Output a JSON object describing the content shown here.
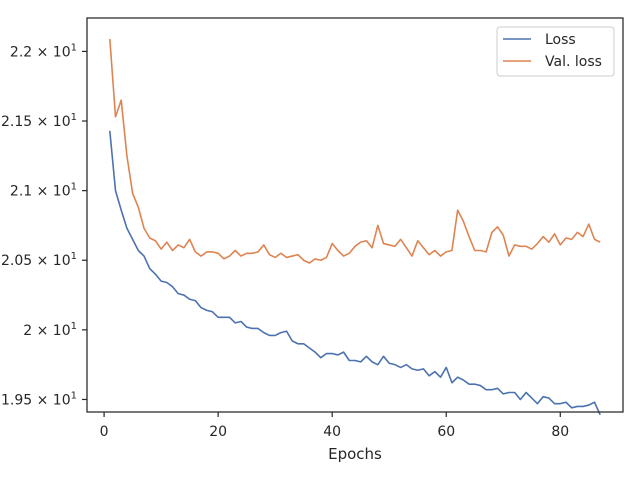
{
  "chart_data": {
    "type": "line",
    "title": "",
    "xlabel": "Epochs",
    "ylabel": "",
    "xlim": [
      -3,
      91
    ],
    "ylim": [
      19.41,
      22.24
    ],
    "grid": false,
    "legend_position": "top-right",
    "x_ticks": [
      0,
      20,
      40,
      60,
      80
    ],
    "y_ticks": [
      {
        "value": 19.5,
        "mant": "1.95",
        "exp": "1"
      },
      {
        "value": 20.0,
        "mant": "2",
        "exp": "1"
      },
      {
        "value": 20.5,
        "mant": "2.05",
        "exp": "1"
      },
      {
        "value": 21.0,
        "mant": "2.1",
        "exp": "1"
      },
      {
        "value": 21.5,
        "mant": "2.15",
        "exp": "1"
      },
      {
        "value": 22.0,
        "mant": "2.2",
        "exp": "1"
      }
    ],
    "x": [
      1,
      2,
      3,
      4,
      5,
      6,
      7,
      8,
      9,
      10,
      11,
      12,
      13,
      14,
      15,
      16,
      17,
      18,
      19,
      20,
      21,
      22,
      23,
      24,
      25,
      26,
      27,
      28,
      29,
      30,
      31,
      32,
      33,
      34,
      35,
      36,
      37,
      38,
      39,
      40,
      41,
      42,
      43,
      44,
      45,
      46,
      47,
      48,
      49,
      50,
      51,
      52,
      53,
      54,
      55,
      56,
      57,
      58,
      59,
      60,
      61,
      62,
      63,
      64,
      65,
      66,
      67,
      68,
      69,
      70,
      71,
      72,
      73,
      74,
      75,
      76,
      77,
      78,
      79,
      80,
      81,
      82,
      83,
      84,
      85,
      86,
      87
    ],
    "series": [
      {
        "name": "Loss",
        "color": "#4c72b0",
        "values": [
          21.43,
          21.0,
          20.86,
          20.73,
          20.65,
          20.57,
          20.53,
          20.44,
          20.4,
          20.35,
          20.34,
          20.31,
          20.26,
          20.25,
          20.22,
          20.21,
          20.16,
          20.14,
          20.13,
          20.09,
          20.09,
          20.09,
          20.05,
          20.06,
          20.02,
          20.01,
          20.01,
          19.98,
          19.96,
          19.96,
          19.98,
          19.99,
          19.92,
          19.9,
          19.9,
          19.87,
          19.84,
          19.8,
          19.83,
          19.83,
          19.82,
          19.84,
          19.78,
          19.78,
          19.77,
          19.81,
          19.77,
          19.75,
          19.81,
          19.76,
          19.75,
          19.73,
          19.75,
          19.72,
          19.71,
          19.72,
          19.67,
          19.7,
          19.66,
          19.73,
          19.62,
          19.66,
          19.64,
          19.61,
          19.61,
          19.6,
          19.57,
          19.57,
          19.58,
          19.54,
          19.55,
          19.55,
          19.5,
          19.55,
          19.51,
          19.47,
          19.52,
          19.51,
          19.47,
          19.47,
          19.48,
          19.44,
          19.45,
          19.45,
          19.46,
          19.48,
          19.39
        ]
      },
      {
        "name": "Val. loss",
        "color": "#dd8452",
        "values": [
          22.09,
          21.53,
          21.65,
          21.25,
          20.98,
          20.88,
          20.73,
          20.66,
          20.64,
          20.58,
          20.63,
          20.57,
          20.61,
          20.59,
          20.65,
          20.56,
          20.53,
          20.56,
          20.56,
          20.55,
          20.51,
          20.53,
          20.57,
          20.53,
          20.55,
          20.55,
          20.56,
          20.61,
          20.54,
          20.52,
          20.55,
          20.52,
          20.53,
          20.54,
          20.5,
          20.48,
          20.51,
          20.5,
          20.52,
          20.62,
          20.57,
          20.53,
          20.55,
          20.6,
          20.63,
          20.64,
          20.59,
          20.75,
          20.62,
          20.61,
          20.6,
          20.65,
          20.59,
          20.53,
          20.64,
          20.59,
          20.54,
          20.57,
          20.53,
          20.56,
          20.57,
          20.86,
          20.78,
          20.67,
          20.57,
          20.57,
          20.56,
          20.7,
          20.74,
          20.68,
          20.53,
          20.61,
          20.6,
          20.6,
          20.58,
          20.62,
          20.67,
          20.63,
          20.69,
          20.61,
          20.66,
          20.65,
          20.7,
          20.67,
          20.76,
          20.65,
          20.63
        ]
      }
    ]
  }
}
